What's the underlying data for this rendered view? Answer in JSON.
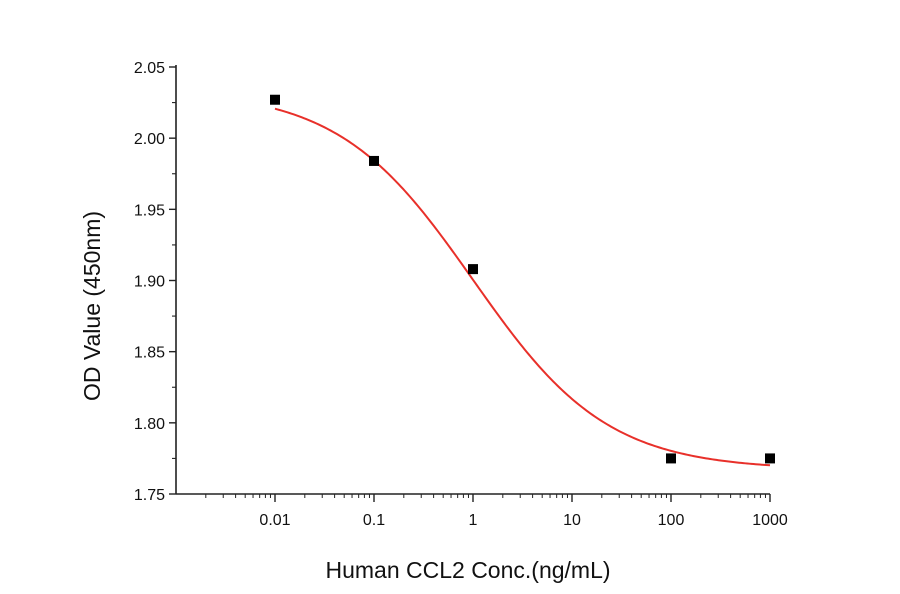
{
  "chart_data": {
    "type": "scatter",
    "title": "",
    "xlabel": "Human CCL2 Conc.(ng/mL)",
    "ylabel": "OD Value (450nm)",
    "xscale": "log",
    "xlim": [
      0.001,
      1000
    ],
    "ylim": [
      1.75,
      2.05
    ],
    "x_ticks": [
      "0.01",
      "0.1",
      "1",
      "10",
      "100",
      "1000"
    ],
    "y_ticks": [
      "2.05",
      "2.00",
      "1.95",
      "1.90",
      "1.85",
      "1.80",
      "1.75"
    ],
    "grid": false,
    "series": [
      {
        "x": [
          0.01,
          0.1,
          1,
          100,
          1000
        ],
        "y": [
          2.027,
          1.984,
          1.908,
          1.775,
          1.775
        ],
        "marker": "square",
        "color": "#000000"
      }
    ],
    "fit_curve": {
      "type": "four-parameter logistic",
      "color": "#e8302a",
      "x_range": [
        0.01,
        1000
      ],
      "top": 2.034,
      "bottom": 1.767,
      "ec50": 1.0,
      "hill": 0.64
    }
  }
}
